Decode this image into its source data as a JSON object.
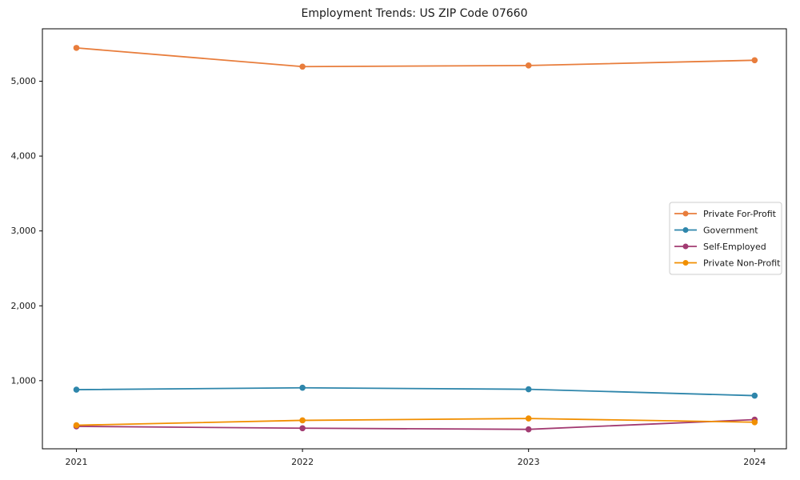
{
  "window": {
    "background": "#ffffff"
  },
  "chart_data": {
    "type": "line",
    "title": "Employment Trends: US ZIP Code 07660",
    "xlabel": "",
    "ylabel": "",
    "x": [
      2021,
      2022,
      2023,
      2024
    ],
    "x_tick_labels": [
      "2021",
      "2022",
      "2023",
      "2024"
    ],
    "y_ticks": [
      1000,
      2000,
      3000,
      4000,
      5000
    ],
    "y_tick_labels": [
      "1,000",
      "2,000",
      "3,000",
      "4,000",
      "5,000"
    ],
    "ylim": [
      90,
      5700
    ],
    "grid": false,
    "legend_position": "center right",
    "legend_border_color": "#cccccc",
    "axis_color": "#000000",
    "text_color": "#1a1a1a",
    "series": [
      {
        "name": "Private For-Profit",
        "color": "#E87D3C",
        "values": [
          5445,
          5195,
          5210,
          5280
        ]
      },
      {
        "name": "Government",
        "color": "#2E86AB",
        "values": [
          880,
          905,
          885,
          800
        ]
      },
      {
        "name": "Self-Employed",
        "color": "#A23B72",
        "values": [
          390,
          365,
          350,
          480
        ]
      },
      {
        "name": "Private Non-Profit",
        "color": "#F18F01",
        "values": [
          405,
          470,
          495,
          445
        ]
      }
    ]
  }
}
